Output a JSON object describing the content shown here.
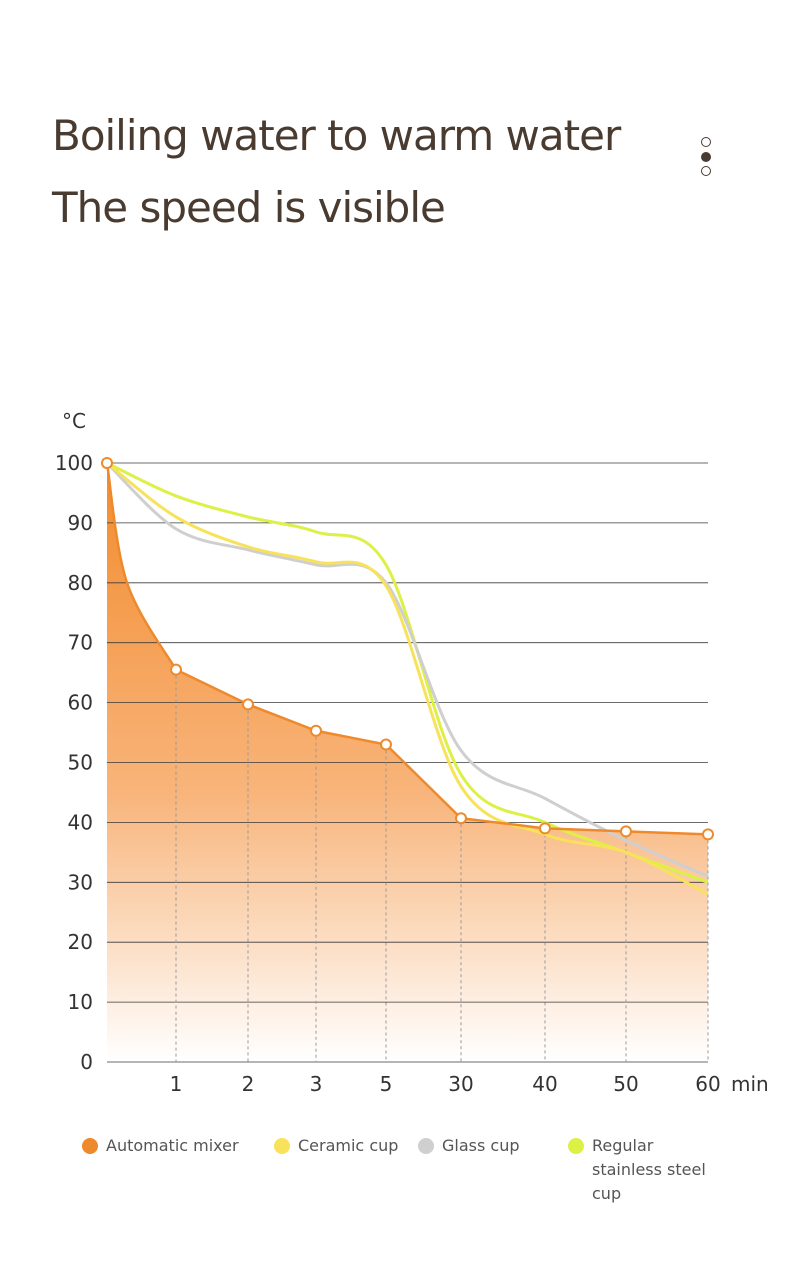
{
  "header": {
    "title_line1": "Boiling water to warm water",
    "title_line2": "The speed is visible"
  },
  "chart_data": {
    "type": "area",
    "y_label": "°C",
    "x_label": "min",
    "categories": [
      null,
      "1",
      "2",
      "3",
      "5",
      "30",
      "40",
      "50",
      "60"
    ],
    "ylim": [
      0,
      100
    ],
    "yticks": [
      0,
      10,
      20,
      30,
      40,
      50,
      60,
      70,
      80,
      90,
      100
    ],
    "grid": true,
    "series": [
      {
        "name": "Automatic mixer",
        "color": "#ee8a2c",
        "values": [
          100,
          65.5,
          59.7,
          55.3,
          53,
          40.7,
          39,
          38.5,
          38
        ]
      },
      {
        "name": "Ceramic cup",
        "color": "#f7e259",
        "values": [
          100,
          91,
          86,
          83.5,
          79.5,
          46,
          38,
          35,
          28
        ]
      },
      {
        "name": "Glass cup",
        "color": "#cfcfcf",
        "values": [
          100,
          89,
          85.5,
          83,
          80,
          52,
          44,
          37,
          31
        ]
      },
      {
        "name": "Regular stainless steel cup",
        "color": "#dcf045",
        "values": [
          100,
          94.5,
          91,
          88.5,
          83,
          48,
          40,
          35,
          30
        ]
      }
    ]
  }
}
